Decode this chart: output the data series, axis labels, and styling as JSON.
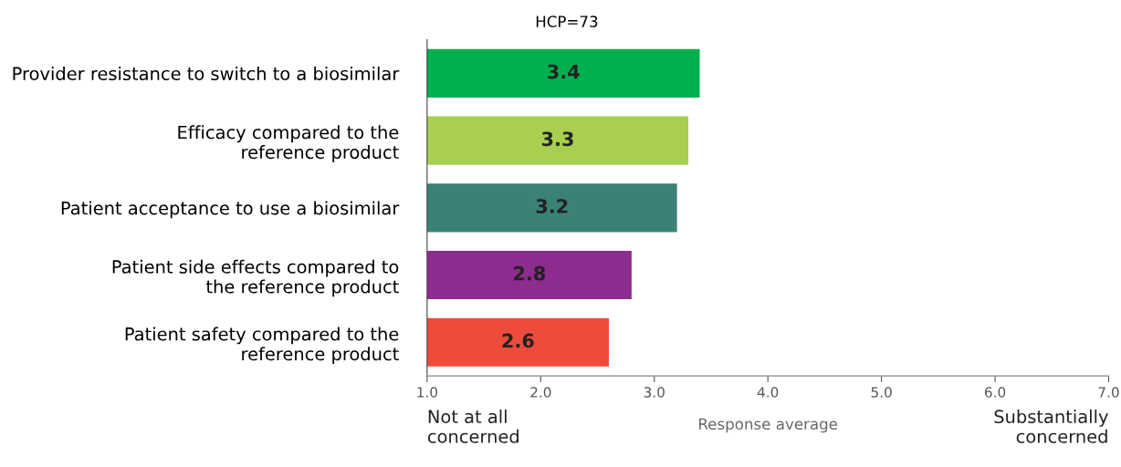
{
  "chart_data": {
    "type": "bar",
    "orientation": "horizontal",
    "title": "HCP=73",
    "xlabel": "Response average",
    "categories": [
      "Provider resistance to switch to a biosimilar",
      "Efficacy compared to the\nreference product",
      "Patient acceptance to use a biosimilar",
      "Patient side effects compared to\nthe reference product",
      "Patient safety compared to the\nreference product"
    ],
    "values": [
      3.4,
      3.3,
      3.2,
      2.8,
      2.6
    ],
    "colors": [
      "#00b04f",
      "#a8cf4f",
      "#3a8277",
      "#8e2b8e",
      "#ee4b3b"
    ],
    "data_labels": true,
    "xlim": [
      1,
      7
    ],
    "xticks": [
      {
        "value": 1,
        "label": "1.0"
      },
      {
        "value": 2,
        "label": "2.0"
      },
      {
        "value": 3,
        "label": "3.0"
      },
      {
        "value": 4,
        "label": "4.0"
      },
      {
        "value": 5,
        "label": "5.0"
      },
      {
        "value": 6,
        "label": "6.0"
      },
      {
        "value": 7,
        "label": "7.0"
      }
    ],
    "annotations": [
      "Not at all\nconcerned",
      "Substantially\nconcerned"
    ],
    "grid": false,
    "legend": false
  }
}
